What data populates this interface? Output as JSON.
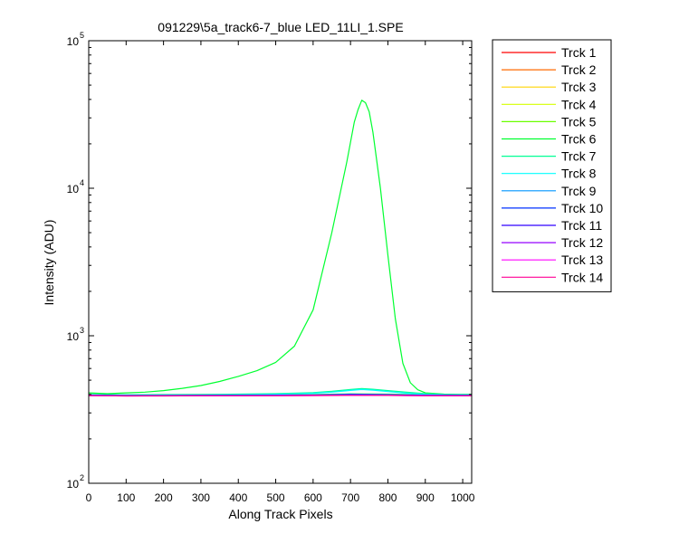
{
  "chart_data": {
    "type": "line",
    "title": "091229\\5a_track6-7_blue LED_11LI_1.SPE",
    "xlabel": "Along Track Pixels",
    "ylabel": "Intensity (ADU)",
    "xlim": [
      0,
      1024
    ],
    "ylim": [
      100,
      100000
    ],
    "yscale": "log",
    "grid": false,
    "legend_position": "outside-right",
    "x_ticks": [
      "0",
      "100",
      "200",
      "300",
      "400",
      "500",
      "600",
      "700",
      "800",
      "900",
      "1000"
    ],
    "y_ticks": [
      {
        "base": "10",
        "exp": "2"
      },
      {
        "base": "10",
        "exp": "3"
      },
      {
        "base": "10",
        "exp": "4"
      },
      {
        "base": "10",
        "exp": "5"
      }
    ],
    "series": [
      {
        "name": "Trck 1",
        "color": "#ff0000",
        "x": [
          0,
          100,
          200,
          300,
          400,
          500,
          600,
          700,
          800,
          900,
          1024
        ],
        "values": [
          395,
          393,
          394,
          393,
          394,
          394,
          395,
          396,
          395,
          394,
          394
        ]
      },
      {
        "name": "Trck 2",
        "color": "#ff6a00",
        "x": [
          0,
          100,
          200,
          300,
          400,
          500,
          600,
          700,
          800,
          900,
          1024
        ],
        "values": [
          396,
          394,
          394,
          394,
          394,
          395,
          396,
          397,
          396,
          395,
          395
        ]
      },
      {
        "name": "Trck 3",
        "color": "#ffd400",
        "x": [
          0,
          100,
          200,
          300,
          400,
          500,
          600,
          700,
          800,
          900,
          1024
        ],
        "values": [
          395,
          394,
          393,
          394,
          394,
          394,
          395,
          397,
          396,
          394,
          394
        ]
      },
      {
        "name": "Trck 4",
        "color": "#d4ff00",
        "x": [
          0,
          100,
          200,
          300,
          400,
          500,
          600,
          700,
          800,
          900,
          1024
        ],
        "values": [
          396,
          394,
          394,
          394,
          394,
          395,
          396,
          398,
          397,
          395,
          395
        ]
      },
      {
        "name": "Trck 5",
        "color": "#6aff00",
        "x": [
          0,
          100,
          200,
          300,
          400,
          500,
          600,
          700,
          800,
          900,
          1024
        ],
        "values": [
          398,
          396,
          396,
          396,
          397,
          398,
          400,
          404,
          402,
          398,
          397
        ]
      },
      {
        "name": "Trck 6",
        "color": "#00ff30",
        "x": [
          0,
          50,
          100,
          150,
          200,
          250,
          300,
          350,
          400,
          450,
          500,
          550,
          600,
          650,
          690,
          710,
          720,
          730,
          740,
          750,
          760,
          780,
          800,
          820,
          840,
          860,
          880,
          900,
          950,
          1000,
          1024
        ],
        "values": [
          410,
          405,
          410,
          415,
          425,
          440,
          460,
          490,
          530,
          580,
          660,
          850,
          1500,
          5000,
          15000,
          28000,
          34000,
          39500,
          38000,
          33000,
          24000,
          10000,
          3500,
          1300,
          650,
          480,
          430,
          410,
          402,
          400,
          400
        ]
      },
      {
        "name": "Trck 7",
        "color": "#00ff95",
        "x": [
          0,
          100,
          200,
          300,
          400,
          500,
          600,
          650,
          700,
          730,
          760,
          800,
          850,
          900,
          950,
          1024
        ],
        "values": [
          400,
          398,
          399,
          400,
          402,
          405,
          412,
          420,
          432,
          438,
          434,
          425,
          414,
          405,
          401,
          400
        ]
      },
      {
        "name": "Trck 8",
        "color": "#00ffff",
        "x": [
          0,
          100,
          200,
          300,
          400,
          500,
          600,
          650,
          700,
          730,
          760,
          800,
          850,
          900,
          950,
          1024
        ],
        "values": [
          397,
          395,
          395,
          396,
          398,
          401,
          408,
          415,
          426,
          432,
          428,
          418,
          408,
          400,
          397,
          396
        ]
      },
      {
        "name": "Trck 9",
        "color": "#0095ff",
        "x": [
          0,
          100,
          200,
          300,
          400,
          500,
          600,
          700,
          800,
          900,
          1024
        ],
        "values": [
          396,
          394,
          394,
          394,
          395,
          396,
          398,
          402,
          400,
          396,
          395
        ]
      },
      {
        "name": "Trck 10",
        "color": "#0030ff",
        "x": [
          0,
          100,
          200,
          300,
          400,
          500,
          600,
          700,
          800,
          900,
          1024
        ],
        "values": [
          395,
          393,
          393,
          394,
          394,
          395,
          396,
          399,
          397,
          395,
          394
        ]
      },
      {
        "name": "Trck 11",
        "color": "#3000ff",
        "x": [
          0,
          100,
          200,
          300,
          400,
          500,
          600,
          700,
          800,
          900,
          1024
        ],
        "values": [
          394,
          392,
          393,
          393,
          393,
          394,
          395,
          397,
          396,
          394,
          393
        ]
      },
      {
        "name": "Trck 12",
        "color": "#9500ff",
        "x": [
          0,
          100,
          200,
          300,
          400,
          500,
          600,
          700,
          800,
          900,
          1024
        ],
        "values": [
          394,
          392,
          392,
          393,
          393,
          393,
          394,
          396,
          395,
          393,
          393
        ]
      },
      {
        "name": "Trck 13",
        "color": "#ff00ff",
        "x": [
          0,
          100,
          200,
          300,
          400,
          500,
          600,
          700,
          800,
          900,
          1024
        ],
        "values": [
          393,
          391,
          392,
          392,
          392,
          393,
          394,
          395,
          394,
          393,
          392
        ]
      },
      {
        "name": "Trck 14",
        "color": "#ff0095",
        "x": [
          0,
          100,
          200,
          300,
          400,
          500,
          600,
          700,
          800,
          900,
          1024
        ],
        "values": [
          393,
          391,
          391,
          392,
          392,
          392,
          393,
          395,
          394,
          392,
          392
        ]
      }
    ]
  }
}
